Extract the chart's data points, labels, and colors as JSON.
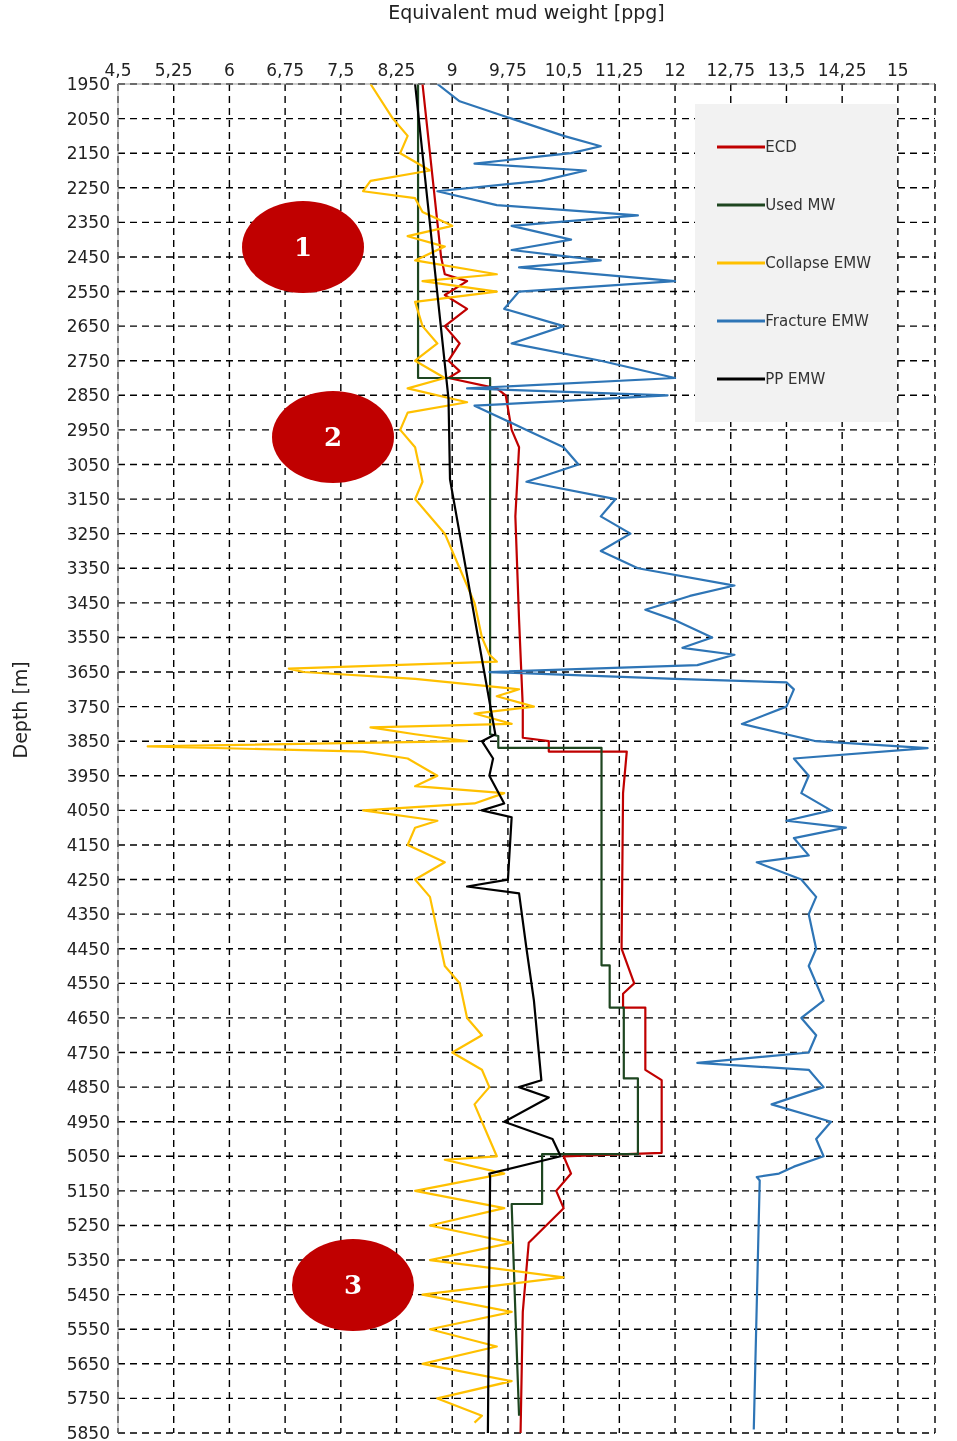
{
  "chart_data": {
    "type": "line",
    "xlabel": "Equivalent mud weight [ppg]",
    "ylabel": "Depth [m]",
    "xlim": [
      4.5,
      15.5
    ],
    "xticks": [
      {
        "value": 4.5,
        "label": "4,5"
      },
      {
        "value": 5.25,
        "label": "5,25"
      },
      6,
      {
        "value": 6.75,
        "label": "6,75"
      },
      {
        "value": 7.5,
        "label": "7,5"
      },
      {
        "value": 8.25,
        "label": "8,25"
      },
      9,
      {
        "value": 9.75,
        "label": "9,75"
      },
      {
        "value": 10.5,
        "label": "10,5"
      },
      {
        "value": 11.25,
        "label": "11,25"
      },
      12,
      {
        "value": 12.75,
        "label": "12,75"
      },
      {
        "value": 13.5,
        "label": "13,5"
      },
      {
        "value": 14.25,
        "label": "14,25"
      },
      15
    ],
    "ylim": [
      5850,
      1950
    ],
    "yticks": [
      1950,
      2050,
      2150,
      2250,
      2350,
      2450,
      2550,
      2650,
      2750,
      2850,
      2950,
      3050,
      3150,
      3250,
      3350,
      3450,
      3550,
      3650,
      3750,
      3850,
      3950,
      4050,
      4150,
      4250,
      4350,
      4450,
      4550,
      4650,
      4750,
      4850,
      4950,
      5050,
      5150,
      5250,
      5350,
      5450,
      5550,
      5650,
      5750,
      5850
    ],
    "grid": true,
    "legend": "top right",
    "marker": "none",
    "line_style": "solid",
    "annotations": [
      "1",
      "2",
      "3"
    ],
    "series": [
      {
        "name": "ECD",
        "color": "#c00000",
        "x": [
          8.6,
          8.7,
          8.8,
          8.85,
          8.9,
          9.2,
          8.9,
          9.2,
          8.9,
          9.1,
          8.95,
          9.1,
          8.95,
          9.6,
          9.72,
          9.8,
          9.9,
          9.85,
          9.9,
          9.95,
          9.95,
          10.3,
          10.3,
          11.35,
          11.3,
          11.28,
          11.45,
          11.3,
          11.3,
          11.6,
          11.6,
          11.82,
          11.82,
          10.5,
          10.6,
          10.4,
          10.5,
          10.03,
          9.95,
          9.92
        ],
        "values": [
          1950,
          2150,
          2350,
          2450,
          2500,
          2520,
          2560,
          2600,
          2650,
          2700,
          2750,
          2780,
          2800,
          2830,
          2850,
          2950,
          3000,
          3200,
          3500,
          3750,
          3840,
          3850,
          3880,
          3880,
          4000,
          4450,
          4550,
          4580,
          4620,
          4620,
          4800,
          4830,
          5040,
          5050,
          5100,
          5150,
          5200,
          5300,
          5500,
          5850
        ]
      },
      {
        "name": "Used MW",
        "color": "#1e4620",
        "x": [
          8.54,
          8.54,
          9.51,
          9.51,
          9.62,
          9.62,
          11.01,
          11.01,
          11.12,
          11.12,
          11.31,
          11.31,
          11.5,
          11.5,
          10.21,
          10.21,
          9.8,
          9.85,
          9.9
        ],
        "values": [
          1950,
          2800,
          2800,
          3830,
          3835,
          3869,
          3869,
          4498,
          4498,
          4620,
          4620,
          4825,
          4825,
          5044,
          5044,
          5188,
          5188,
          5500,
          5800
        ]
      },
      {
        "name": "Collapse EMW",
        "color": "#ffc000",
        "x": [
          7.9,
          8.2,
          8.4,
          8.3,
          8.7,
          7.9,
          7.8,
          8.5,
          8.6,
          9.0,
          8.4,
          8.9,
          8.5,
          9.6,
          8.6,
          9.6,
          8.5,
          8.6,
          8.8,
          8.5,
          8.9,
          8.4,
          9.2,
          8.4,
          8.3,
          8.5,
          8.6,
          8.5,
          8.9,
          9.1,
          9.3,
          9.4,
          9.5,
          9.6,
          6.8,
          7.0,
          8.5,
          9.9,
          9.6,
          10.1,
          9.3,
          9.8,
          7.9,
          8.5,
          9.2,
          4.9,
          7.8,
          8.4,
          8.8,
          8.5,
          9.7,
          9.3,
          7.8,
          8.8,
          8.5,
          8.4,
          8.9,
          8.5,
          8.7,
          8.8,
          8.9,
          9.1,
          9.2,
          9.4,
          9.0,
          9.4,
          9.5,
          9.3,
          9.5,
          9.6,
          8.9,
          9.7,
          8.5,
          9.7,
          8.7,
          9.8,
          8.7,
          10.5,
          8.6,
          9.8,
          8.7,
          9.6,
          8.6,
          9.8,
          8.8,
          9.4,
          9.3
        ],
        "values": [
          1950,
          2050,
          2100,
          2150,
          2200,
          2230,
          2260,
          2280,
          2320,
          2360,
          2390,
          2420,
          2460,
          2500,
          2520,
          2550,
          2580,
          2650,
          2700,
          2750,
          2800,
          2830,
          2870,
          2900,
          2950,
          3000,
          3100,
          3150,
          3250,
          3350,
          3450,
          3550,
          3600,
          3620,
          3640,
          3650,
          3670,
          3700,
          3720,
          3750,
          3770,
          3800,
          3810,
          3830,
          3850,
          3865,
          3880,
          3900,
          3950,
          3980,
          4000,
          4030,
          4050,
          4080,
          4100,
          4150,
          4200,
          4250,
          4300,
          4400,
          4500,
          4550,
          4650,
          4700,
          4750,
          4800,
          4850,
          4900,
          5000,
          5050,
          5060,
          5100,
          5150,
          5200,
          5250,
          5300,
          5350,
          5400,
          5450,
          5500,
          5550,
          5600,
          5650,
          5700,
          5750,
          5800,
          5820
        ]
      },
      {
        "name": "Fracture EMW",
        "color": "#2e75b6",
        "x": [
          8.8,
          9.1,
          9.8,
          10.5,
          11.0,
          10.6,
          9.3,
          10.8,
          10.2,
          8.8,
          9.6,
          11.5,
          9.8,
          10.6,
          9.8,
          11.0,
          9.9,
          12.0,
          9.9,
          9.7,
          10.5,
          9.8,
          11.0,
          12.0,
          9.2,
          11.9,
          9.3,
          10.0,
          10.5,
          10.7,
          10.0,
          11.2,
          11.0,
          11.4,
          11.0,
          11.5,
          12.8,
          12.2,
          11.6,
          12.0,
          12.5,
          12.1,
          12.8,
          12.3,
          9.5,
          12.0,
          13.5,
          13.6,
          13.5,
          12.9,
          13.9,
          15.4,
          13.6,
          13.8,
          13.7,
          14.1,
          13.5,
          14.3,
          13.6,
          13.8,
          13.1,
          13.7,
          13.9,
          13.8,
          13.9,
          13.8,
          14.0,
          13.7,
          13.9,
          13.8,
          12.3,
          13.8,
          14.0,
          13.3,
          14.1,
          13.9,
          14.0,
          13.6,
          13.4,
          13.1,
          13.14,
          13.06
        ],
        "values": [
          1950,
          2000,
          2050,
          2100,
          2130,
          2150,
          2180,
          2200,
          2230,
          2260,
          2300,
          2330,
          2360,
          2400,
          2430,
          2460,
          2480,
          2520,
          2550,
          2600,
          2650,
          2700,
          2750,
          2800,
          2830,
          2850,
          2880,
          2950,
          3000,
          3050,
          3100,
          3150,
          3200,
          3250,
          3300,
          3350,
          3400,
          3430,
          3470,
          3500,
          3550,
          3580,
          3600,
          3630,
          3650,
          3670,
          3680,
          3700,
          3750,
          3800,
          3850,
          3870,
          3900,
          3950,
          4000,
          4050,
          4080,
          4100,
          4130,
          4180,
          4200,
          4250,
          4300,
          4350,
          4450,
          4500,
          4600,
          4650,
          4700,
          4750,
          4780,
          4800,
          4850,
          4900,
          4950,
          5000,
          5050,
          5080,
          5100,
          5110,
          5120,
          5840
        ]
      },
      {
        "name": "PP EMW",
        "color": "#000000",
        "x": [
          8.5,
          8.95,
          8.97,
          9.58,
          9.4,
          9.55,
          9.5,
          9.7,
          9.4,
          9.8,
          9.75,
          9.2,
          9.9,
          10.0,
          10.1,
          10.2,
          9.9,
          10.3,
          9.7,
          10.35,
          10.46,
          9.5,
          9.51,
          9.48
        ],
        "values": [
          1950,
          2860,
          3093,
          3830,
          3850,
          3900,
          3950,
          4030,
          4050,
          4070,
          4250,
          4270,
          4290,
          4450,
          4600,
          4830,
          4850,
          4880,
          4950,
          5000,
          5050,
          5100,
          5110,
          5850
        ]
      }
    ]
  }
}
